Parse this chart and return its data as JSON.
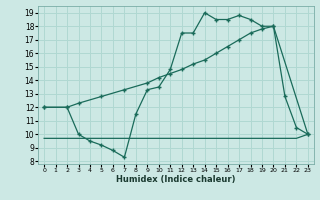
{
  "xlabel": "Humidex (Indice chaleur)",
  "bg_color": "#cce8e4",
  "grid_color": "#b0d8d2",
  "line_color": "#1a6b5a",
  "xlim": [
    -0.5,
    23.5
  ],
  "ylim": [
    7.8,
    19.5
  ],
  "xticks": [
    0,
    1,
    2,
    3,
    4,
    5,
    6,
    7,
    8,
    9,
    10,
    11,
    12,
    13,
    14,
    15,
    16,
    17,
    18,
    19,
    20,
    21,
    22,
    23
  ],
  "yticks": [
    8,
    9,
    10,
    11,
    12,
    13,
    14,
    15,
    16,
    17,
    18,
    19
  ],
  "line1_x": [
    0,
    2,
    3,
    4,
    5,
    6,
    7,
    8,
    9,
    10,
    11,
    12,
    13,
    14,
    15,
    16,
    17,
    18,
    19,
    20,
    21,
    22,
    23
  ],
  "line1_y": [
    12.0,
    12.0,
    10.0,
    9.5,
    9.2,
    8.8,
    8.3,
    11.5,
    13.3,
    13.5,
    14.8,
    17.5,
    17.5,
    19.0,
    18.5,
    18.5,
    18.8,
    18.5,
    18.0,
    18.0,
    12.8,
    10.5,
    10.0
  ],
  "line2_x": [
    0,
    2,
    3,
    5,
    7,
    9,
    10,
    11,
    12,
    13,
    14,
    15,
    16,
    17,
    18,
    19,
    20,
    23
  ],
  "line2_y": [
    12.0,
    12.0,
    12.3,
    12.8,
    13.3,
    13.8,
    14.2,
    14.5,
    14.8,
    15.2,
    15.5,
    16.0,
    16.5,
    17.0,
    17.5,
    17.8,
    18.0,
    10.0
  ],
  "line3_x": [
    0,
    3,
    22,
    23
  ],
  "line3_y": [
    9.7,
    9.7,
    9.7,
    10.0
  ]
}
